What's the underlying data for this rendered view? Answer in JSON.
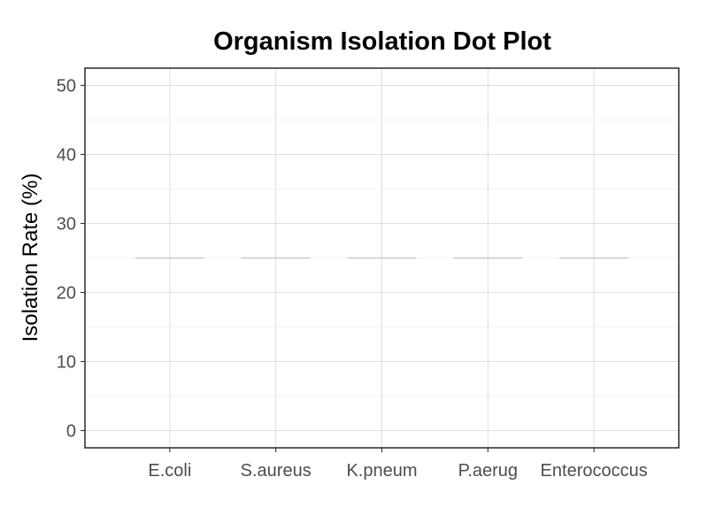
{
  "chart_data": {
    "type": "dot",
    "title": "Organism Isolation Dot Plot",
    "xlabel": "",
    "ylabel": "Isolation Rate (%)",
    "categories": [
      "E.coli",
      "S.aureus",
      "K.pneum",
      "P.aerug",
      "Enterococcus"
    ],
    "values": [
      25,
      25,
      25,
      25,
      25
    ],
    "ylim": [
      -2.5,
      52.5
    ],
    "yticks": [
      0,
      10,
      20,
      30,
      40,
      50
    ],
    "grid": true,
    "reference_line_color": "#c8c8c8"
  }
}
